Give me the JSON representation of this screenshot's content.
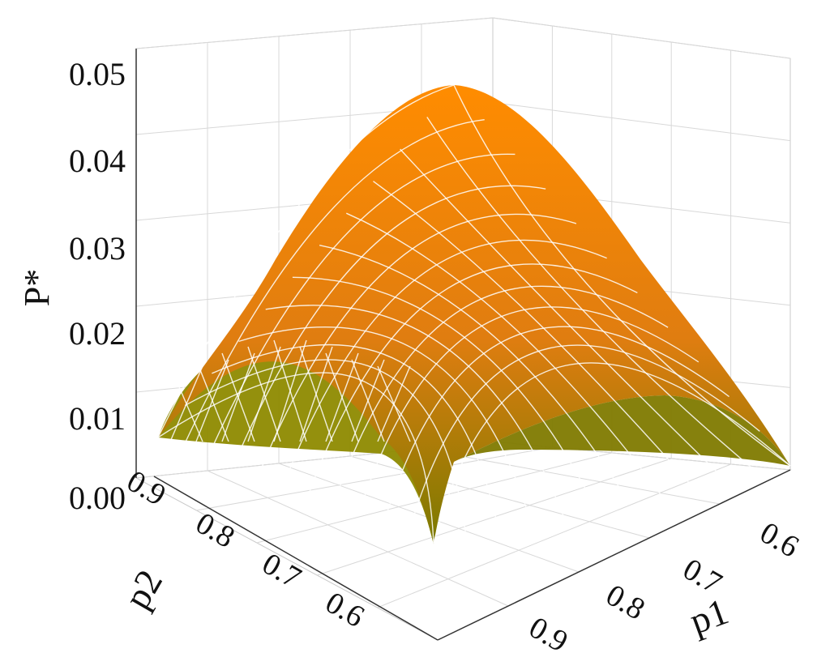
{
  "chart_data": {
    "type": "surface3d",
    "title": "",
    "zlabel": "P*",
    "xlabel": "p1",
    "ylabel": "p2",
    "z_ticks": [
      "0.00",
      "0.01",
      "0.02",
      "0.03",
      "0.04",
      "0.05"
    ],
    "p1_ticks": [
      "0.6",
      "0.7",
      "0.8",
      "0.9"
    ],
    "p2_ticks": [
      "0.9",
      "0.8",
      "0.7",
      "0.6"
    ],
    "xlim": [
      0.55,
      0.95
    ],
    "ylim": [
      0.55,
      0.95
    ],
    "zlim": [
      0.0,
      0.05
    ],
    "grid": true,
    "peak": {
      "p1": 0.75,
      "p2": 0.75,
      "P": 0.049
    },
    "corner_values": {
      "p1_low_p2_low": 0.006,
      "p1_high_p2_high": 0.006,
      "p1_low_p2_high": 0.006,
      "p1_high_p2_low": 0.0
    },
    "colors": {
      "high": "#ff8c00",
      "low": "#7a7a00",
      "mesh": "#ffffff"
    }
  }
}
